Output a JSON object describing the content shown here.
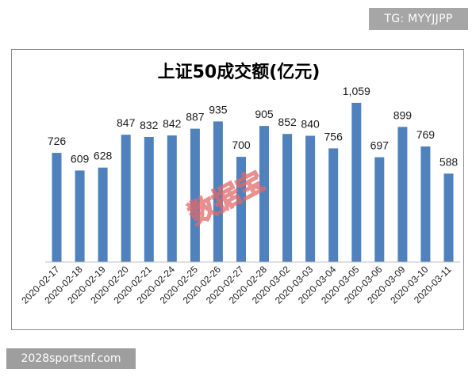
{
  "watermarks": {
    "top_right": "TG: MYYJJPP",
    "bottom_left": "2028sportsnf.com",
    "stamp": "数据宝",
    "stamp_color": "#e26a6a"
  },
  "chart_data": {
    "type": "bar",
    "title": "上证50成交额(亿元)",
    "xlabel": "",
    "ylabel": "",
    "ylim": [
      0,
      1100
    ],
    "grid": false,
    "legend": "none",
    "bar_color": "#4f81bd",
    "categories": [
      "2020-02-17",
      "2020-02-18",
      "2020-02-19",
      "2020-02-20",
      "2020-02-21",
      "2020-02-24",
      "2020-02-25",
      "2020-02-26",
      "2020-02-27",
      "2020-02-28",
      "2020-03-02",
      "2020-03-03",
      "2020-03-04",
      "2020-03-05",
      "2020-03-06",
      "2020-03-09",
      "2020-03-10",
      "2020-03-11"
    ],
    "values": [
      726,
      609,
      628,
      847,
      832,
      842,
      887,
      935,
      700,
      905,
      852,
      840,
      756,
      1059,
      697,
      899,
      769,
      588
    ],
    "value_labels": [
      "726",
      "609",
      "628",
      "847",
      "832",
      "842",
      "887",
      "935",
      "700",
      "905",
      "852",
      "840",
      "756",
      "1,059",
      "697",
      "899",
      "769",
      "588"
    ]
  }
}
